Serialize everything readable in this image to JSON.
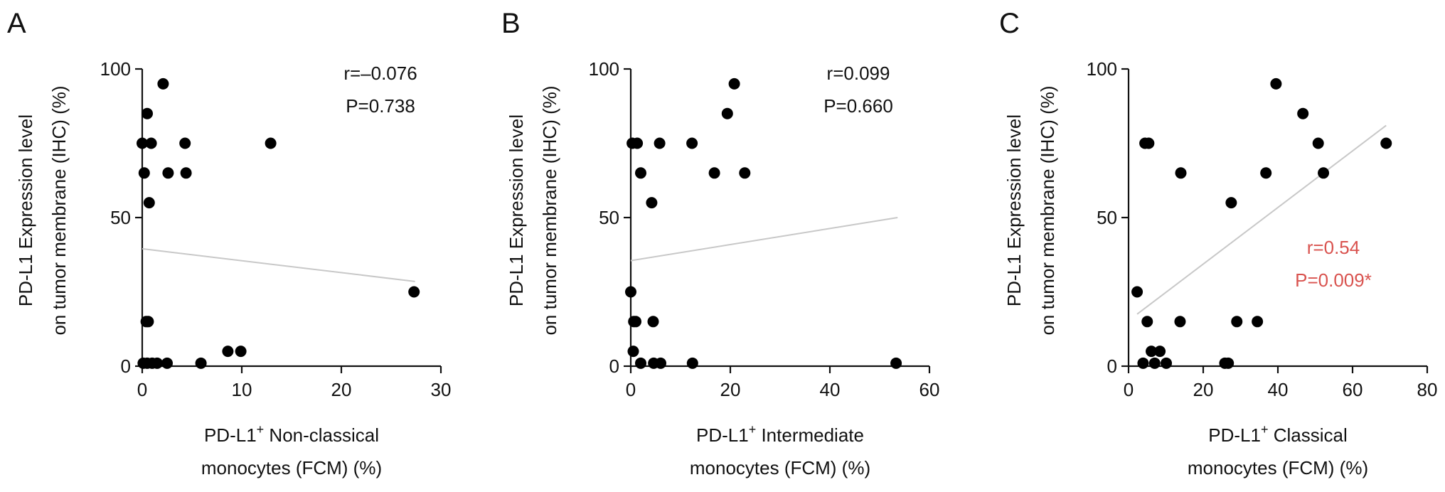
{
  "colors": {
    "text": "#111111",
    "fit_line": "#c8c8c8",
    "point": "#000000",
    "significant": "#d9534f"
  },
  "chart_data": [
    {
      "type": "scatter",
      "panel": "A",
      "ylabel_lines": [
        "PD-L1 Expression level",
        "on tumor membrane (IHC) (%)"
      ],
      "xlabel_lines": [
        {
          "pre": "PD-L1",
          "sup": "+",
          "post": " Non-classical"
        },
        {
          "pre": "monocytes (FCM) (%)",
          "sup": "",
          "post": ""
        }
      ],
      "xlim": [
        0,
        30
      ],
      "ylim": [
        0,
        100
      ],
      "xticks": [
        0,
        10,
        20,
        30
      ],
      "yticks": [
        0,
        50,
        100
      ],
      "stats": [
        "r=–0.076",
        "P=0.738"
      ],
      "significant": false,
      "fit": {
        "x": [
          0,
          27.4
        ],
        "y": [
          39.5,
          28.5
        ]
      },
      "points": [
        {
          "x": 0.0,
          "y": 75
        },
        {
          "x": 0.2,
          "y": 65
        },
        {
          "x": 0.5,
          "y": 85
        },
        {
          "x": 0.9,
          "y": 75
        },
        {
          "x": 0.7,
          "y": 55
        },
        {
          "x": 2.1,
          "y": 95
        },
        {
          "x": 2.6,
          "y": 65
        },
        {
          "x": 4.3,
          "y": 75
        },
        {
          "x": 4.4,
          "y": 65
        },
        {
          "x": 12.9,
          "y": 75
        },
        {
          "x": 0.4,
          "y": 15
        },
        {
          "x": 0.6,
          "y": 15
        },
        {
          "x": 0.1,
          "y": 1
        },
        {
          "x": 0.5,
          "y": 1
        },
        {
          "x": 1.0,
          "y": 1
        },
        {
          "x": 1.5,
          "y": 1
        },
        {
          "x": 2.5,
          "y": 1
        },
        {
          "x": 5.9,
          "y": 1
        },
        {
          "x": 8.6,
          "y": 5
        },
        {
          "x": 9.9,
          "y": 5
        },
        {
          "x": 27.3,
          "y": 25
        }
      ]
    },
    {
      "type": "scatter",
      "panel": "B",
      "ylabel_lines": [
        "PD-L1 Expression level",
        "on tumor membrane (IHC) (%)"
      ],
      "xlabel_lines": [
        {
          "pre": "PD-L1",
          "sup": "+",
          "post": " Intermediate"
        },
        {
          "pre": "monocytes (FCM) (%)",
          "sup": "",
          "post": ""
        }
      ],
      "xlim": [
        0,
        60
      ],
      "ylim": [
        0,
        100
      ],
      "xticks": [
        0,
        20,
        40,
        60
      ],
      "yticks": [
        0,
        50,
        100
      ],
      "stats": [
        "r=0.099",
        "P=0.660"
      ],
      "significant": false,
      "fit": {
        "x": [
          0,
          53.6
        ],
        "y": [
          35.5,
          50
        ]
      },
      "points": [
        {
          "x": 0.3,
          "y": 75
        },
        {
          "x": 1.3,
          "y": 75
        },
        {
          "x": 2.0,
          "y": 65
        },
        {
          "x": 4.2,
          "y": 55
        },
        {
          "x": 5.8,
          "y": 75
        },
        {
          "x": 12.3,
          "y": 75
        },
        {
          "x": 16.8,
          "y": 65
        },
        {
          "x": 19.4,
          "y": 85
        },
        {
          "x": 20.8,
          "y": 95
        },
        {
          "x": 22.9,
          "y": 65
        },
        {
          "x": 0.0,
          "y": 25
        },
        {
          "x": 0.6,
          "y": 15
        },
        {
          "x": 1.0,
          "y": 15
        },
        {
          "x": 4.5,
          "y": 15
        },
        {
          "x": 0.5,
          "y": 5
        },
        {
          "x": 2.0,
          "y": 1
        },
        {
          "x": 4.6,
          "y": 1
        },
        {
          "x": 6.0,
          "y": 1
        },
        {
          "x": 12.4,
          "y": 1
        },
        {
          "x": 53.3,
          "y": 1
        }
      ]
    },
    {
      "type": "scatter",
      "panel": "C",
      "ylabel_lines": [
        "PD-L1 Expression level",
        "on tumor membrane (IHC) (%)"
      ],
      "xlabel_lines": [
        {
          "pre": "PD-L1",
          "sup": "+",
          "post": " Classical"
        },
        {
          "pre": "monocytes (FCM) (%)",
          "sup": "",
          "post": ""
        }
      ],
      "xlim": [
        0,
        80
      ],
      "ylim": [
        0,
        100
      ],
      "xticks": [
        0,
        20,
        40,
        60,
        80
      ],
      "yticks": [
        0,
        50,
        100
      ],
      "stats": [
        "r=0.54",
        "P=0.009*"
      ],
      "significant": true,
      "fit": {
        "x": [
          2.3,
          69
        ],
        "y": [
          17.5,
          81
        ]
      },
      "points": [
        {
          "x": 4.4,
          "y": 75
        },
        {
          "x": 5.4,
          "y": 75
        },
        {
          "x": 14.0,
          "y": 65
        },
        {
          "x": 27.5,
          "y": 55
        },
        {
          "x": 36.8,
          "y": 65
        },
        {
          "x": 39.5,
          "y": 95
        },
        {
          "x": 46.7,
          "y": 85
        },
        {
          "x": 50.8,
          "y": 75
        },
        {
          "x": 52.2,
          "y": 65
        },
        {
          "x": 69.0,
          "y": 75
        },
        {
          "x": 2.3,
          "y": 25
        },
        {
          "x": 5.0,
          "y": 15
        },
        {
          "x": 13.8,
          "y": 15
        },
        {
          "x": 29.0,
          "y": 15
        },
        {
          "x": 34.5,
          "y": 15
        },
        {
          "x": 6.1,
          "y": 5
        },
        {
          "x": 8.4,
          "y": 5
        },
        {
          "x": 3.9,
          "y": 1
        },
        {
          "x": 7.0,
          "y": 1
        },
        {
          "x": 10.1,
          "y": 1
        },
        {
          "x": 25.8,
          "y": 1
        },
        {
          "x": 26.7,
          "y": 1
        }
      ]
    }
  ]
}
